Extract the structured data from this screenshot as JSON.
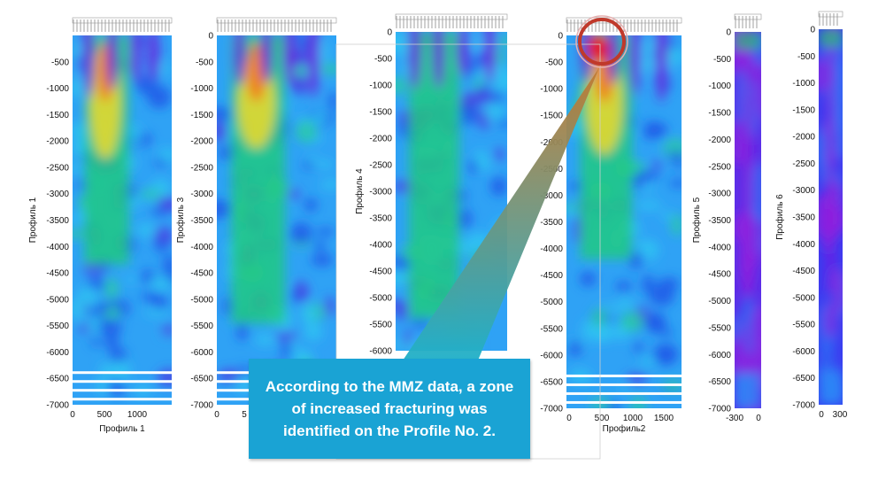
{
  "chart_data": [
    {
      "type": "heatmap",
      "xlabel": "Профиль 1",
      "ylabel": "Профиль 1",
      "ylim": [
        -7000,
        0
      ],
      "x_ticks": [
        "0",
        "500",
        "1000"
      ],
      "y_ticks": [
        "-500",
        "-1000",
        "-1500",
        "-2000",
        "-2500",
        "-3000",
        "-3500",
        "-4000",
        "-4500",
        "-5000",
        "-5500",
        "-6000",
        "-6500",
        "-7000"
      ]
    },
    {
      "type": "heatmap",
      "xlabel": "",
      "ylabel": "Профиль 3",
      "ylim": [
        -7000,
        0
      ],
      "x_ticks": [
        "0",
        "5"
      ],
      "y_ticks": [
        "0",
        "-500",
        "-1000",
        "-1500",
        "-2000",
        "-2500",
        "-3000",
        "-3500",
        "-4000",
        "-4500",
        "-5000",
        "-5500",
        "-6000",
        "-6500",
        "-7000"
      ]
    },
    {
      "type": "heatmap",
      "xlabel": "",
      "ylabel": "Профиль 4",
      "ylim": [
        -6000,
        0
      ],
      "x_ticks": [],
      "y_ticks": [
        "0",
        "-500",
        "-1000",
        "-1500",
        "-2000",
        "-2500",
        "-3000",
        "-3500",
        "-4000",
        "-4500",
        "-5000",
        "-5500",
        "-6000"
      ]
    },
    {
      "type": "heatmap",
      "xlabel": "Профиль2",
      "ylabel": "",
      "ylim": [
        -7000,
        0
      ],
      "x_ticks": [
        "0",
        "500",
        "1000",
        "1500"
      ],
      "y_ticks": [
        "0",
        "-500",
        "-1000",
        "-1500",
        "-2000",
        "-2500",
        "-3000",
        "-3500",
        "-4000",
        "-4500",
        "-5000",
        "-5500",
        "-6000",
        "-6500",
        "-7000"
      ]
    },
    {
      "type": "heatmap",
      "xlabel": "",
      "ylabel": "Профиль 5",
      "ylim": [
        -7000,
        0
      ],
      "x_ticks": [
        "-300",
        "0"
      ],
      "y_ticks": [
        "0",
        "-500",
        "-1000",
        "-1500",
        "-2000",
        "-2500",
        "-3000",
        "-3500",
        "-4000",
        "-4500",
        "-5000",
        "-5500",
        "-6000",
        "-6500",
        "-7000"
      ]
    },
    {
      "type": "heatmap",
      "xlabel": "",
      "ylabel": "Профиль 6",
      "ylim": [
        -7000,
        0
      ],
      "x_ticks": [
        "0",
        "300"
      ],
      "y_ticks": [
        "0",
        "-500",
        "-1000",
        "-1500",
        "-2000",
        "-2500",
        "-3000",
        "-3500",
        "-4000",
        "-4500",
        "-5000",
        "-5500",
        "-6000",
        "-6500",
        "-7000"
      ]
    }
  ],
  "callout": {
    "text": "According to the MMZ data, a zone of increased fracturing was identified on the Profile No. 2.",
    "box_color": "#1aa3d4",
    "highlight_color": "#c0392b",
    "arrow_top_color": "#c8772a",
    "arrow_bottom_color": "#1fb0c9"
  }
}
